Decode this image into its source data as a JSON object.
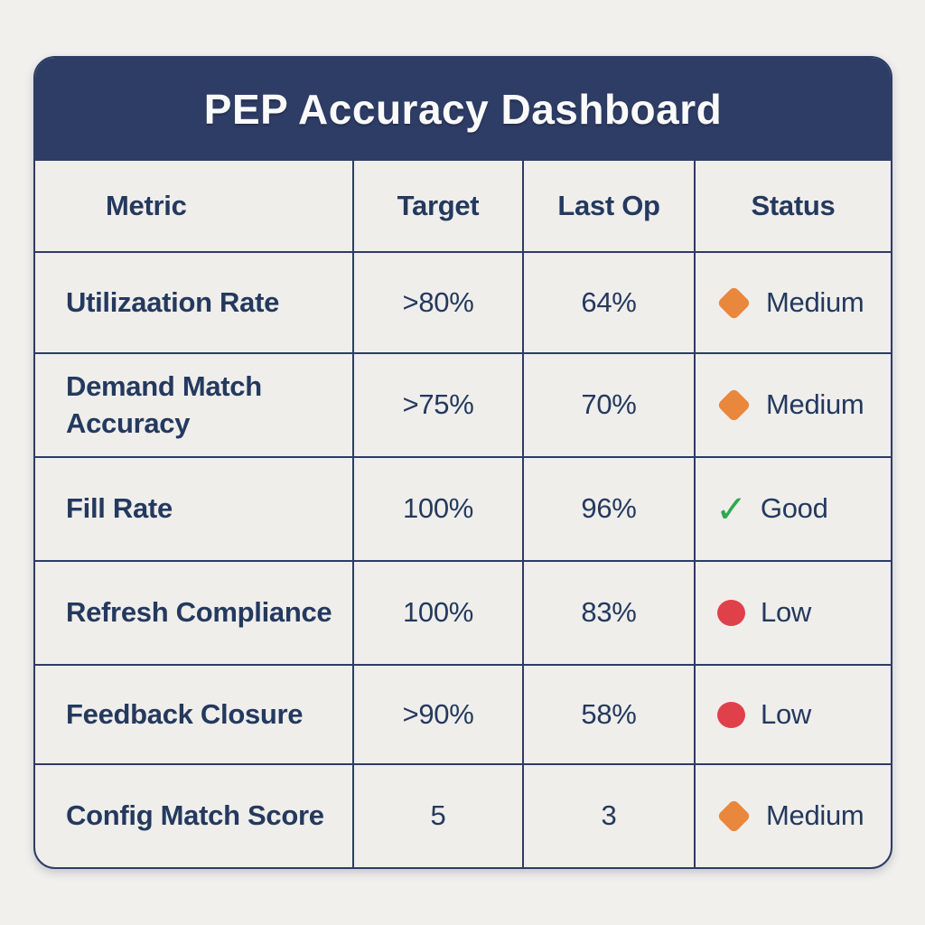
{
  "title": "PEP Accuracy Dashboard",
  "chart_data": {
    "type": "table",
    "title": "PEP Accuracy Dashboard",
    "columns": [
      "Metric",
      "Target",
      "Last Op",
      "Status"
    ],
    "rows": [
      {
        "metric": "Utilizaation Rate",
        "target": ">80%",
        "last_op": "64%",
        "status": {
          "label": "Medium",
          "icon": "diamond"
        }
      },
      {
        "metric": "Demand Match Accuracy",
        "target": ">75%",
        "last_op": "70%",
        "status": {
          "label": "Medium",
          "icon": "diamond"
        }
      },
      {
        "metric": "Fill Rate",
        "target": "100%",
        "last_op": "96%",
        "status": {
          "label": "Good",
          "icon": "check"
        }
      },
      {
        "metric": "Refresh Compliance",
        "target": "100%",
        "last_op": "83%",
        "status": {
          "label": "Low",
          "icon": "circle"
        }
      },
      {
        "metric": "Feedback Closure",
        "target": ">90%",
        "last_op": "58%",
        "status": {
          "label": "Low",
          "icon": "circle"
        }
      },
      {
        "metric": "Config Match Score",
        "target": "5",
        "last_op": "3",
        "status": {
          "label": "Medium",
          "icon": "diamond"
        }
      }
    ],
    "legend_position": "none",
    "grid": true
  },
  "colors": {
    "header_band": "#2E3D66",
    "grid_line": "#2E3C64",
    "text_navy": "#24395E",
    "cell_background": "#EFEEEB",
    "page_background": "#F1F0ED",
    "status_medium": "#E9873D",
    "status_good": "#2FA84F",
    "status_low": "#E0404A"
  }
}
